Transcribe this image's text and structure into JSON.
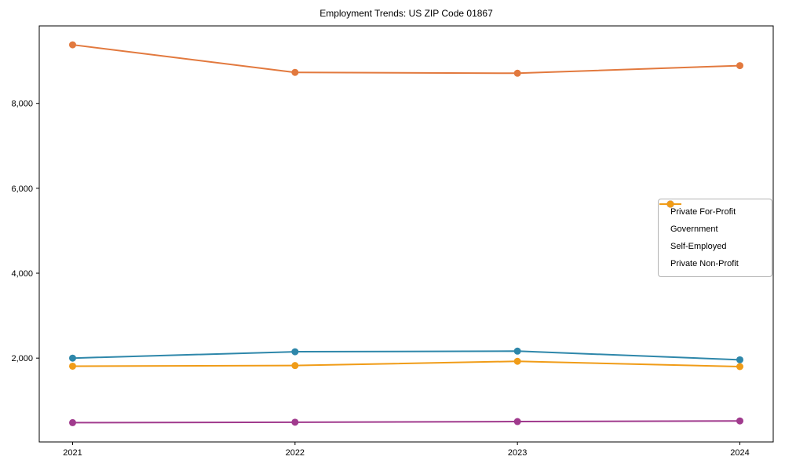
{
  "title": "Employment Trends: US ZIP Code 01867",
  "chart_data": {
    "type": "line",
    "title": "Employment Trends: US ZIP Code 01867",
    "categories": [
      "2021",
      "2022",
      "2023",
      "2024"
    ],
    "series": [
      {
        "name": "Private For-Profit",
        "color": "#e2793e",
        "values": [
          9380,
          8730,
          8710,
          8890
        ]
      },
      {
        "name": "Government",
        "color": "#2e87aa",
        "values": [
          2000,
          2150,
          2165,
          1960
        ]
      },
      {
        "name": "Self-Employed",
        "color": "#a03a8d",
        "values": [
          480,
          490,
          505,
          520
        ]
      },
      {
        "name": "Private Non-Profit",
        "color": "#f09c18",
        "values": [
          1810,
          1825,
          1925,
          1800
        ]
      }
    ],
    "xlabel": "",
    "ylabel": "",
    "ylim": [
      25,
      9825
    ],
    "yticks": [
      2000,
      4000,
      6000,
      8000
    ],
    "ytick_labels": [
      "2,000",
      "4,000",
      "6,000",
      "8,000"
    ],
    "grid": false,
    "legend_position": "center right",
    "marker": "circle",
    "axis_color": "#000000"
  }
}
